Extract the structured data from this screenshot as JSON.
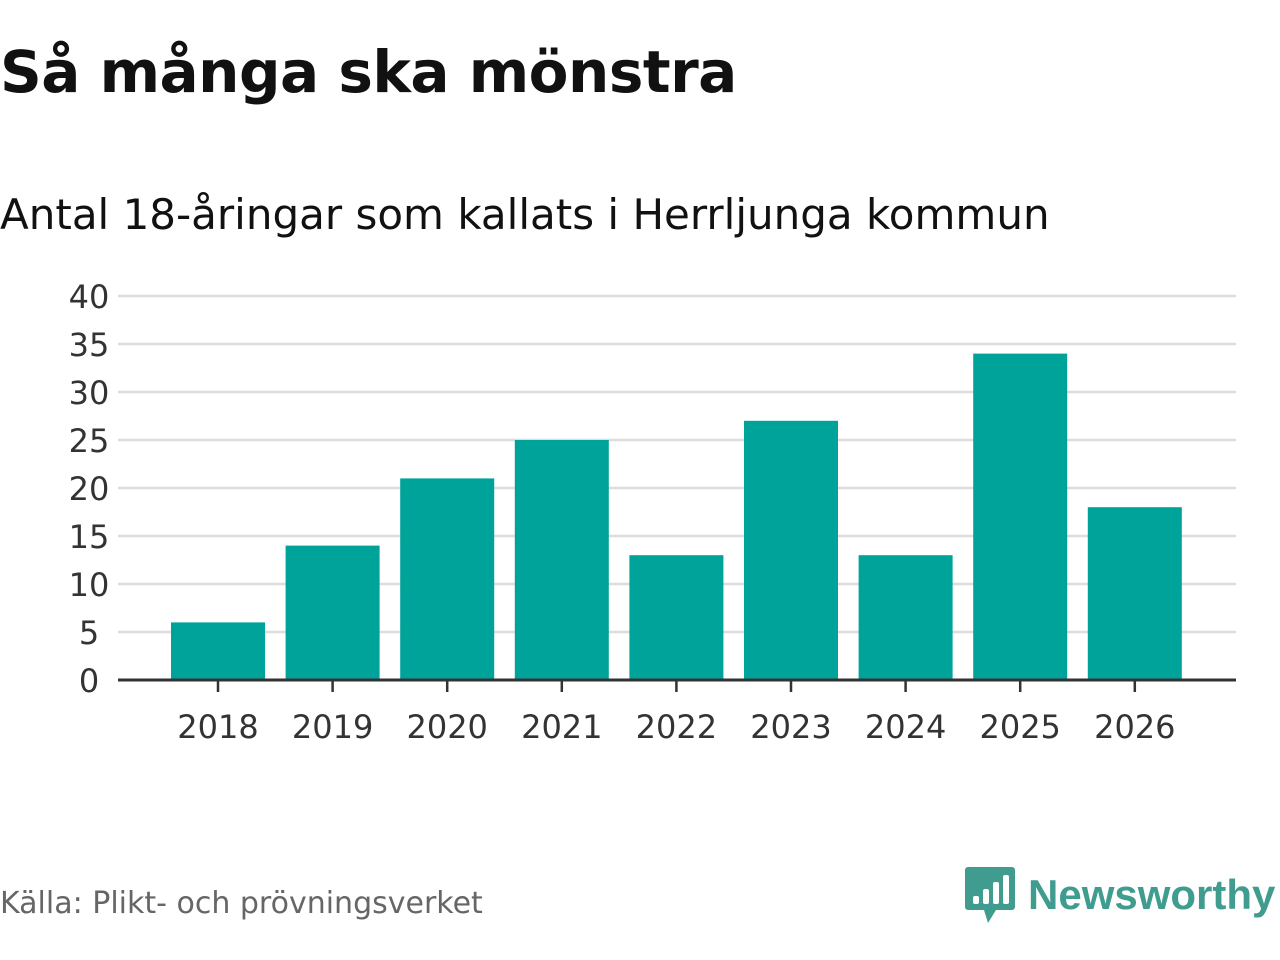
{
  "title": "Så många ska mönstra",
  "subtitle": "Antal 18-åringar som kallats i Herrljunga kommun",
  "source": "Källa: Plikt- och prövningsverket",
  "brand": {
    "name": "Newsworthy",
    "icon": "newsworthy-logo-icon",
    "color": "#3f9c8e"
  },
  "colors": {
    "bar": "#00a39a",
    "grid": "#dddddd",
    "axis": "#333333",
    "tick_text": "#333333"
  },
  "chart_data": {
    "type": "bar",
    "title": "Så många ska mönstra",
    "subtitle": "Antal 18-åringar som kallats i Herrljunga kommun",
    "xlabel": "",
    "ylabel": "",
    "categories": [
      "2018",
      "2019",
      "2020",
      "2021",
      "2022",
      "2023",
      "2024",
      "2025",
      "2026"
    ],
    "values": [
      6,
      14,
      21,
      25,
      13,
      27,
      13,
      34,
      18
    ],
    "ylim": [
      0,
      40
    ],
    "yticks": [
      0,
      5,
      10,
      15,
      20,
      25,
      30,
      35,
      40
    ],
    "grid": true,
    "legend": "none"
  }
}
